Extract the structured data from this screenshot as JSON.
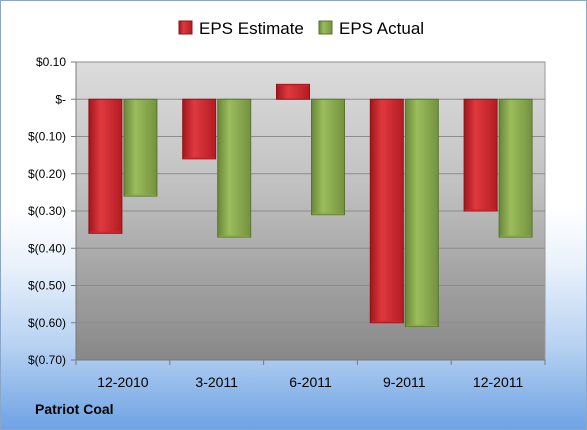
{
  "company": "Patriot Coal",
  "colors": {
    "estimate": "#d0262e",
    "estimate_dark": "#8e1418",
    "actual": "#86a84a",
    "actual_dark": "#5a7430"
  },
  "chart_data": {
    "type": "bar",
    "title": "",
    "xlabel": "",
    "ylabel": "",
    "categories": [
      "12-2010",
      "3-2011",
      "6-2011",
      "9-2011",
      "12-2011"
    ],
    "series": [
      {
        "name": "EPS Estimate",
        "values": [
          -0.36,
          -0.16,
          0.04,
          -0.6,
          -0.3
        ]
      },
      {
        "name": "EPS Actual",
        "values": [
          -0.26,
          -0.37,
          -0.31,
          -0.61,
          -0.37
        ]
      }
    ],
    "ylim": [
      -0.7,
      0.1
    ],
    "yticks": [
      0.1,
      0.0,
      -0.1,
      -0.2,
      -0.3,
      -0.4,
      -0.5,
      -0.6,
      -0.7
    ],
    "ytick_labels": [
      "$0.10",
      "$-",
      "$(0.10)",
      "$(0.20)",
      "$(0.30)",
      "$(0.40)",
      "$(0.50)",
      "$(0.60)",
      "$(0.70)"
    ],
    "grid": true,
    "legend_position": "top"
  }
}
